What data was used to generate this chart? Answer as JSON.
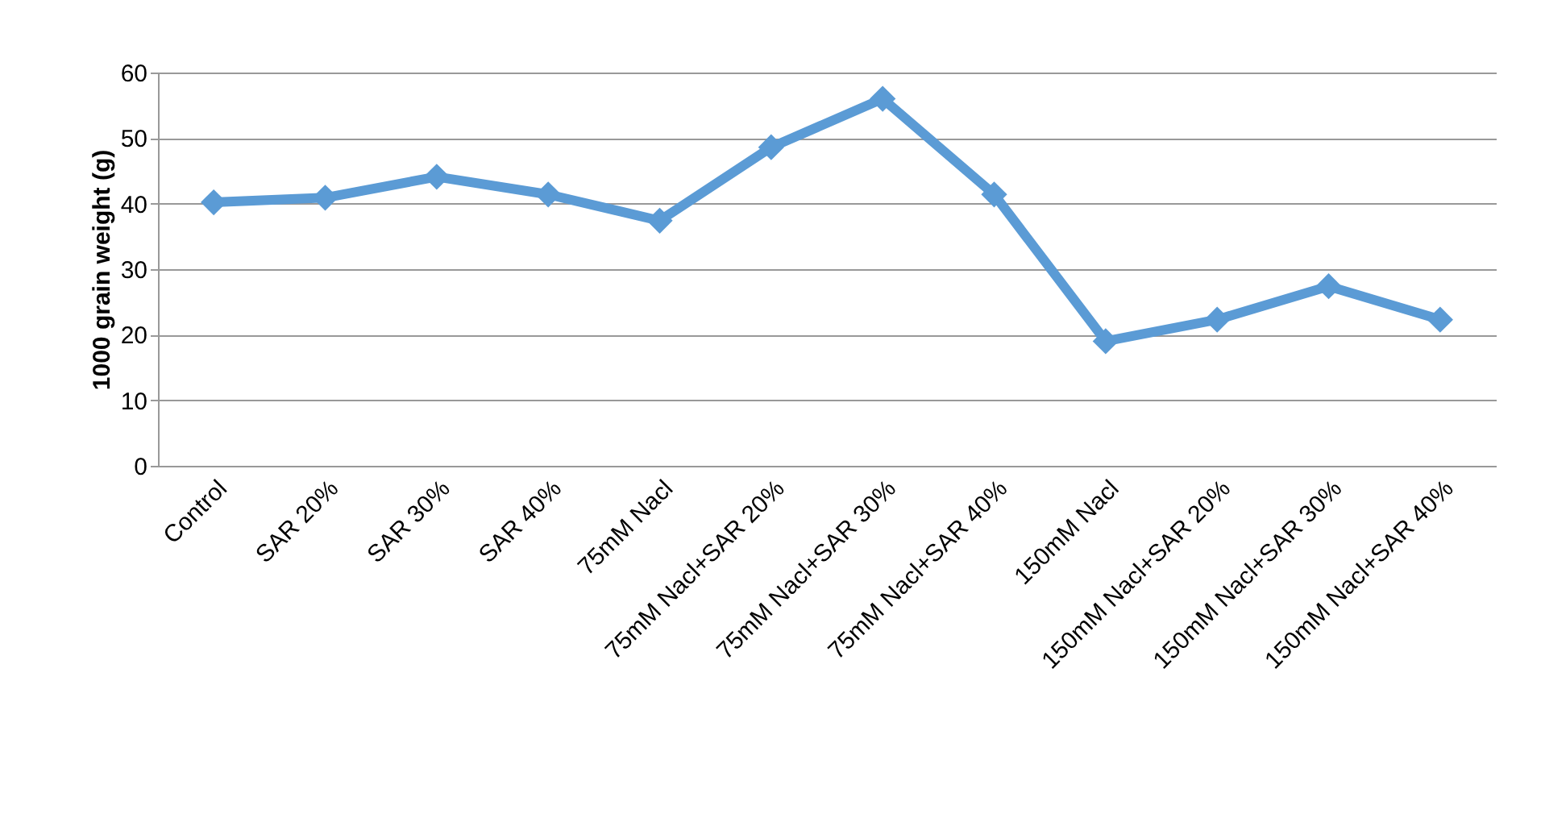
{
  "chart_data": {
    "type": "line",
    "ylabel": "1000 grain weight (g)",
    "categories": [
      "Control",
      "SAR 20%",
      "SAR 30%",
      "SAR 40%",
      "75mM Nacl",
      "75mM Nacl+SAR 20%",
      "75mM Nacl+SAR 30%",
      "75mM Nacl+SAR 40%",
      "150mM Nacl",
      "150mM Nacl+SAR 20%",
      "150mM Nacl+SAR 30%",
      "150mM Nacl+SAR 40%"
    ],
    "series": [
      {
        "color": "#5b9bd5",
        "values": [
          40.2,
          40.9,
          44.1,
          41.4,
          37.4,
          48.6,
          56.0,
          41.4,
          19.0,
          22.3,
          27.4,
          22.3
        ]
      }
    ],
    "ylim": [
      0,
      60
    ],
    "yticks": [
      0,
      10,
      20,
      30,
      40,
      50,
      60
    ],
    "grid": "y",
    "marker": "diamond"
  }
}
